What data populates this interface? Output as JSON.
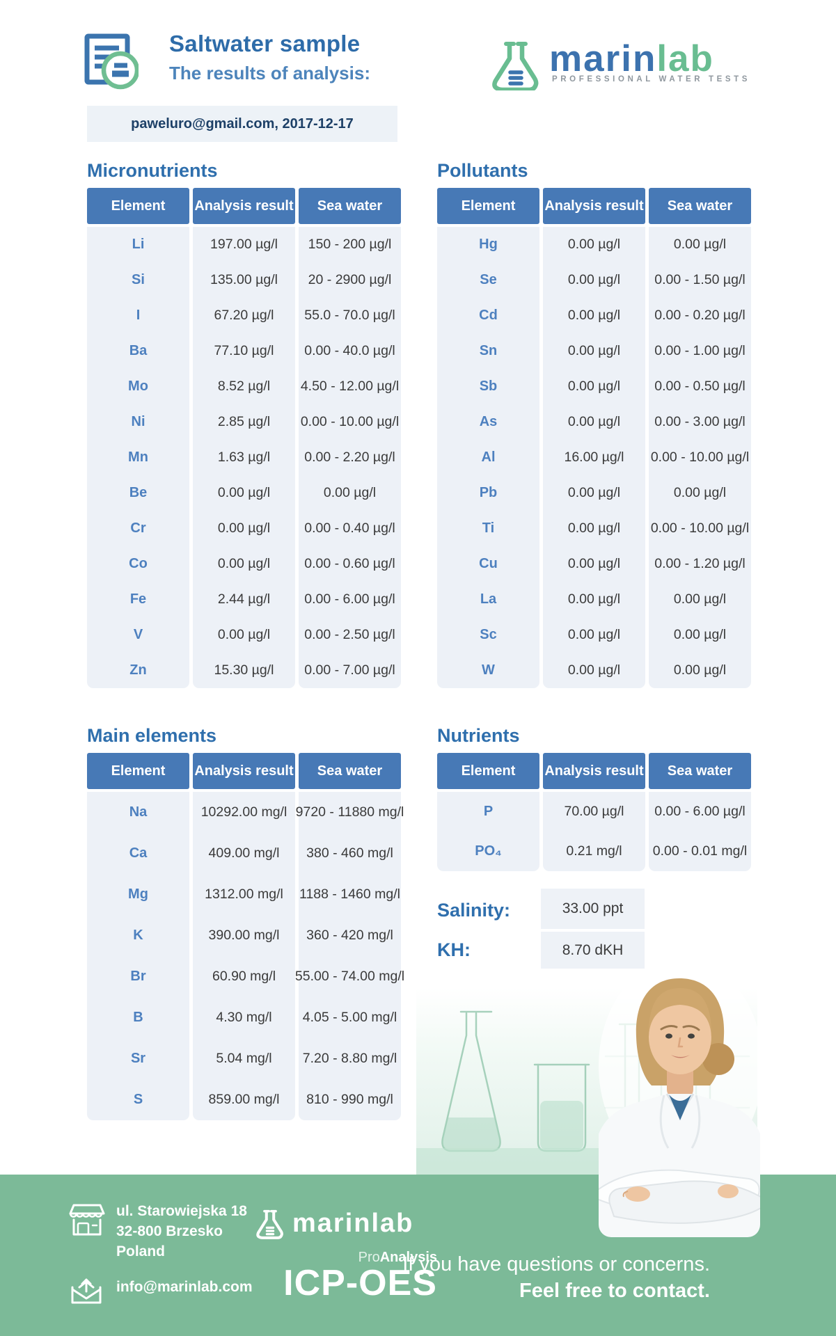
{
  "header": {
    "title": "Saltwater sample",
    "subtitle": "The results of analysis:",
    "meta": "paweluro@gmail.com, 2017-12-17"
  },
  "brand": {
    "name_blue": "marin",
    "name_green": "lab",
    "tagline": "PROFESSIONAL WATER TESTS"
  },
  "columns": [
    "Element",
    "Analysis result",
    "Sea water"
  ],
  "tables": {
    "micronutrients": {
      "title": "Micronutrients",
      "rows": [
        {
          "element": "Li",
          "result": "197.00 µg/l",
          "sea": "150 - 200 µg/l"
        },
        {
          "element": "Si",
          "result": "135.00 µg/l",
          "sea": "20 - 2900 µg/l"
        },
        {
          "element": "I",
          "result": "67.20 µg/l",
          "sea": "55.0 - 70.0 µg/l"
        },
        {
          "element": "Ba",
          "result": "77.10 µg/l",
          "sea": "0.00 - 40.0 µg/l"
        },
        {
          "element": "Mo",
          "result": "8.52 µg/l",
          "sea": "4.50 - 12.00 µg/l"
        },
        {
          "element": "Ni",
          "result": "2.85 µg/l",
          "sea": "0.00 - 10.00 µg/l"
        },
        {
          "element": "Mn",
          "result": "1.63 µg/l",
          "sea": "0.00 - 2.20 µg/l"
        },
        {
          "element": "Be",
          "result": "0.00 µg/l",
          "sea": "0.00 µg/l"
        },
        {
          "element": "Cr",
          "result": "0.00 µg/l",
          "sea": "0.00 - 0.40 µg/l"
        },
        {
          "element": "Co",
          "result": "0.00 µg/l",
          "sea": "0.00 - 0.60 µg/l"
        },
        {
          "element": "Fe",
          "result": "2.44 µg/l",
          "sea": "0.00 - 6.00 µg/l"
        },
        {
          "element": "V",
          "result": "0.00 µg/l",
          "sea": "0.00 - 2.50 µg/l"
        },
        {
          "element": "Zn",
          "result": "15.30 µg/l",
          "sea": "0.00 - 7.00 µg/l"
        }
      ]
    },
    "pollutants": {
      "title": "Pollutants",
      "rows": [
        {
          "element": "Hg",
          "result": "0.00 µg/l",
          "sea": "0.00 µg/l"
        },
        {
          "element": "Se",
          "result": "0.00 µg/l",
          "sea": "0.00 - 1.50 µg/l"
        },
        {
          "element": "Cd",
          "result": "0.00 µg/l",
          "sea": "0.00 - 0.20 µg/l"
        },
        {
          "element": "Sn",
          "result": "0.00 µg/l",
          "sea": "0.00 - 1.00 µg/l"
        },
        {
          "element": "Sb",
          "result": "0.00 µg/l",
          "sea": "0.00 - 0.50 µg/l"
        },
        {
          "element": "As",
          "result": "0.00 µg/l",
          "sea": "0.00 - 3.00 µg/l"
        },
        {
          "element": "Al",
          "result": "16.00 µg/l",
          "sea": "0.00 - 10.00 µg/l"
        },
        {
          "element": "Pb",
          "result": "0.00 µg/l",
          "sea": "0.00 µg/l"
        },
        {
          "element": "Ti",
          "result": "0.00 µg/l",
          "sea": "0.00 - 10.00 µg/l"
        },
        {
          "element": "Cu",
          "result": "0.00 µg/l",
          "sea": "0.00 - 1.20 µg/l"
        },
        {
          "element": "La",
          "result": "0.00 µg/l",
          "sea": "0.00 µg/l"
        },
        {
          "element": "Sc",
          "result": "0.00 µg/l",
          "sea": "0.00 µg/l"
        },
        {
          "element": "W",
          "result": "0.00 µg/l",
          "sea": "0.00 µg/l"
        }
      ]
    },
    "main_elements": {
      "title": "Main elements",
      "rows": [
        {
          "element": "Na",
          "result": "10292.00 mg/l",
          "sea": "9720 - 11880 mg/l"
        },
        {
          "element": "Ca",
          "result": "409.00 mg/l",
          "sea": "380 - 460 mg/l"
        },
        {
          "element": "Mg",
          "result": "1312.00 mg/l",
          "sea": "1188 - 1460 mg/l"
        },
        {
          "element": "K",
          "result": "390.00 mg/l",
          "sea": "360 - 420 mg/l"
        },
        {
          "element": "Br",
          "result": "60.90 mg/l",
          "sea": "55.00 - 74.00 mg/l"
        },
        {
          "element": "B",
          "result": "4.30 mg/l",
          "sea": "4.05 - 5.00 mg/l"
        },
        {
          "element": "Sr",
          "result": "5.04 mg/l",
          "sea": "7.20 - 8.80 mg/l"
        },
        {
          "element": "S",
          "result": "859.00 mg/l",
          "sea": "810 - 990 mg/l"
        }
      ]
    },
    "nutrients": {
      "title": "Nutrients",
      "rows": [
        {
          "element": "P",
          "result": "70.00 µg/l",
          "sea": "0.00 - 6.00 µg/l"
        },
        {
          "element": "PO₄",
          "result": "0.21 mg/l",
          "sea": "0.00 - 0.01 mg/l"
        }
      ]
    }
  },
  "summary": {
    "salinity_label": "Salinity:",
    "salinity_value": "33.00 ppt",
    "kh_label": "KH:",
    "kh_value": "8.70 dKH"
  },
  "footer": {
    "address_line1": "ul. Starowiejska 18",
    "address_line2": "32-800 Brzesko",
    "address_line3": "Poland",
    "email": "info@marinlab.com",
    "brand": "marinlab",
    "program_prefix": "Pro",
    "program_suffix": "Analysis",
    "method": "ICP-OES",
    "contact_line1": "If you have questions or concerns.",
    "contact_line2": "Feel free to contact."
  },
  "colors": {
    "title_blue": "#2e6ca9",
    "table_header_blue": "#4779b6",
    "element_blue": "#4d80bf",
    "brand_blue": "#3c72ae",
    "brand_green": "#69bd91",
    "footer_green": "#7cba98",
    "panel_bg": "#edf1f7"
  }
}
